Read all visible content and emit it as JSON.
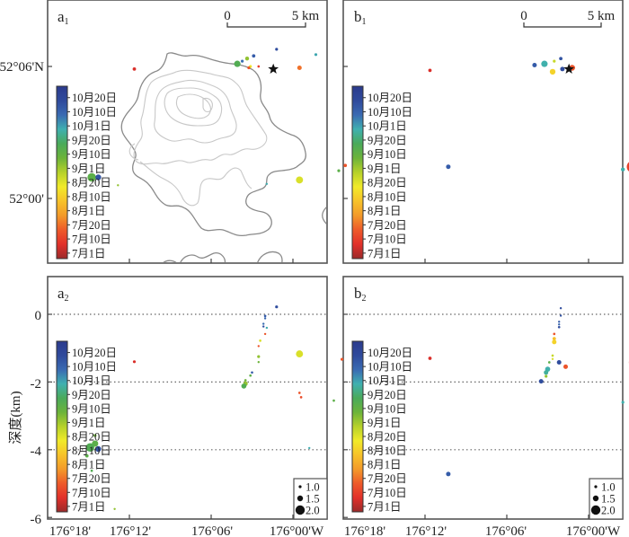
{
  "chart_data": {
    "type": "scatter",
    "title": "",
    "colorbar": {
      "labels": [
        "10月20日",
        "10月10日",
        "10月1日",
        "9月20日",
        "9月10日",
        "9月1日",
        "8月20日",
        "8月10日",
        "8月1日",
        "7月20日",
        "7月10日",
        "7月1日"
      ],
      "colors_top_to_bottom": [
        "#2b3a8c",
        "#2f4a9c",
        "#3a6ab2",
        "#3fb0b0",
        "#4aaa5a",
        "#6cb33a",
        "#b6d12a",
        "#f1ea2a",
        "#f7c22a",
        "#f39a2a",
        "#ee5a2a",
        "#e2302a",
        "#9b2a2a"
      ]
    },
    "size_legend": {
      "labels": [
        "1.0",
        "1.5",
        "2.0"
      ],
      "values": [
        1.0,
        1.5,
        2.0
      ]
    },
    "panels": [
      {
        "id": "a1",
        "label": "a",
        "subscript": "1",
        "kind": "map",
        "ylabel": "",
        "ytick_labels": [
          "52°06'N",
          "52°00'"
        ],
        "scale_bar": {
          "start_label": "0",
          "end_label": "5 km"
        },
        "events": [
          {
            "lon": -176.11,
            "lat": 52.113,
            "date": "10月20日",
            "mag": 1.0
          },
          {
            "lon": -176.124,
            "lat": 52.108,
            "date": "10月15日",
            "mag": 1.1
          },
          {
            "lon": -176.128,
            "lat": 52.106,
            "date": "9月5日",
            "mag": 1.2
          },
          {
            "lon": -176.131,
            "lat": 52.104,
            "date": "10月10日",
            "mag": 1.0
          },
          {
            "lon": -176.134,
            "lat": 52.102,
            "date": "9月18日",
            "mag": 1.6
          },
          {
            "lon": -176.086,
            "lat": 52.109,
            "date": "10月2日",
            "mag": 1.0
          },
          {
            "lon": -176.126,
            "lat": 52.1,
            "date": "8月20日",
            "mag": 1.0
          },
          {
            "lon": -176.127,
            "lat": 52.099,
            "date": "7月20日",
            "mag": 1.0
          },
          {
            "lon": -176.121,
            "lat": 52.1,
            "date": "7月15日",
            "mag": 0.9
          },
          {
            "lon": -176.096,
            "lat": 52.099,
            "date": "7月25日",
            "mag": 1.3
          },
          {
            "lon": -176.197,
            "lat": 52.098,
            "date": "7月10日",
            "mag": 1.1
          },
          {
            "lon": -176.068,
            "lat": 52.025,
            "date": "7月20日",
            "mag": 1.1
          },
          {
            "lon": -176.072,
            "lat": 52.021,
            "date": "9月15日",
            "mag": 1.0
          },
          {
            "lon": -176.005,
            "lat": 52.024,
            "date": "10月15日",
            "mag": 1.3
          },
          {
            "lon": -176.096,
            "lat": 52.014,
            "date": "8月25日",
            "mag": 1.7
          },
          {
            "lon": -176.116,
            "lat": 52.011,
            "date": "10月1日",
            "mag": 0.8
          },
          {
            "lon": -176.223,
            "lat": 52.016,
            "date": "9月15日",
            "mag": 1.9
          },
          {
            "lon": -176.219,
            "lat": 52.016,
            "date": "10月18日",
            "mag": 1.5
          },
          {
            "lon": -176.207,
            "lat": 52.01,
            "date": "9月5日",
            "mag": 0.8
          }
        ]
      },
      {
        "id": "b1",
        "label": "b",
        "subscript": "1",
        "kind": "map",
        "ytick_labels": [],
        "scale_bar": {
          "start_label": "0",
          "end_label": "5 km"
        },
        "events": [
          {
            "lon": -176.117,
            "lat": 52.106,
            "date": "10月18日",
            "mag": 1.1
          },
          {
            "lon": -176.121,
            "lat": 52.104,
            "date": "8月28日",
            "mag": 1.0
          },
          {
            "lon": -176.127,
            "lat": 52.102,
            "date": "9月30日",
            "mag": 1.6
          },
          {
            "lon": -176.133,
            "lat": 52.101,
            "date": "10月15日",
            "mag": 1.3
          },
          {
            "lon": -176.116,
            "lat": 52.098,
            "date": "10月20日",
            "mag": 1.3
          },
          {
            "lon": -176.11,
            "lat": 52.099,
            "date": "7月20日",
            "mag": 1.5
          },
          {
            "lon": -176.122,
            "lat": 52.096,
            "date": "8月15日",
            "mag": 1.5
          },
          {
            "lon": -176.197,
            "lat": 52.097,
            "date": "7月10日",
            "mag": 1.1
          },
          {
            "lon": -176.073,
            "lat": 52.024,
            "date": "7月15日",
            "mag": 2.3
          },
          {
            "lon": -176.073,
            "lat": 52.024,
            "date": "8月5日",
            "mag": 1.4
          },
          {
            "lon": -176.079,
            "lat": 52.022,
            "date": "9月30日",
            "mag": 1.2
          }
        ]
      },
      {
        "id": "a2",
        "label": "a",
        "subscript": "2",
        "kind": "profile",
        "ylabel": "深度(km)",
        "ylim": [
          -6,
          1
        ],
        "ytick_labels": [
          "0",
          "-2",
          "-4",
          "-6"
        ],
        "yticks": [
          0,
          -2,
          -4,
          -6
        ],
        "xtick_labels": [
          "176°18'",
          "176°12'",
          "176°06'",
          "176°00'W"
        ],
        "events": [
          {
            "lon": -176.11,
            "depth": 0.22,
            "date": "10月20日",
            "mag": 1.0
          },
          {
            "lon": -176.117,
            "depth": -0.05,
            "date": "10月15日",
            "mag": 0.9
          },
          {
            "lon": -176.117,
            "depth": -0.12,
            "date": "10月12日",
            "mag": 0.8
          },
          {
            "lon": -176.118,
            "depth": -0.28,
            "date": "10月10日",
            "mag": 0.8
          },
          {
            "lon": -176.118,
            "depth": -0.36,
            "date": "10月18日",
            "mag": 0.8
          },
          {
            "lon": -176.116,
            "depth": -0.4,
            "date": "10月1日",
            "mag": 0.8
          },
          {
            "lon": -176.117,
            "depth": -0.58,
            "date": "7月20日",
            "mag": 0.8
          },
          {
            "lon": -176.12,
            "depth": -0.78,
            "date": "8月25日",
            "mag": 0.9
          },
          {
            "lon": -176.121,
            "depth": -0.94,
            "date": "7月20日",
            "mag": 0.8
          },
          {
            "lon": -176.121,
            "depth": -1.25,
            "date": "9月5日",
            "mag": 1.0
          },
          {
            "lon": -176.121,
            "depth": -1.41,
            "date": "9月10日",
            "mag": 0.8
          },
          {
            "lon": -176.125,
            "depth": -1.72,
            "date": "10月15日",
            "mag": 0.9
          },
          {
            "lon": -176.126,
            "depth": -1.81,
            "date": "9月15日",
            "mag": 0.9
          },
          {
            "lon": -176.129,
            "depth": -1.95,
            "date": "9月10日",
            "mag": 0.9
          },
          {
            "lon": -176.129,
            "depth": -2.05,
            "date": "9月5日",
            "mag": 1.3
          },
          {
            "lon": -176.13,
            "depth": -2.12,
            "date": "9月18日",
            "mag": 1.4
          },
          {
            "lon": -176.096,
            "depth": -1.17,
            "date": "8月25日",
            "mag": 1.7
          },
          {
            "lon": -176.07,
            "depth": -1.33,
            "date": "7月20日",
            "mag": 1.0
          },
          {
            "lon": -176.197,
            "depth": -1.4,
            "date": "7月10日",
            "mag": 1.0
          },
          {
            "lon": -176.096,
            "depth": -2.32,
            "date": "7月20日",
            "mag": 0.9
          },
          {
            "lon": -176.095,
            "depth": -2.45,
            "date": "7月18日",
            "mag": 0.9
          },
          {
            "lon": -176.075,
            "depth": -2.55,
            "date": "9月15日",
            "mag": 0.9
          },
          {
            "lon": -176.09,
            "depth": -3.95,
            "date": "10月1日",
            "mag": 0.8
          },
          {
            "lon": -176.221,
            "depth": -3.58,
            "date": "9月10日",
            "mag": 1.0
          },
          {
            "lon": -176.221,
            "depth": -3.82,
            "date": "9月15日",
            "mag": 1.6
          },
          {
            "lon": -176.224,
            "depth": -3.93,
            "date": "9月18日",
            "mag": 1.9
          },
          {
            "lon": -176.219,
            "depth": -3.98,
            "date": "10月18日",
            "mag": 1.5
          },
          {
            "lon": -176.226,
            "depth": -4.18,
            "date": "9月15日",
            "mag": 1.1
          },
          {
            "lon": -176.223,
            "depth": -4.62,
            "date": "9月18日",
            "mag": 0.9
          },
          {
            "lon": -176.209,
            "depth": -5.75,
            "date": "9月5日",
            "mag": 0.8
          },
          {
            "lon": -176.005,
            "depth": -4.72,
            "date": "10月15日",
            "mag": 1.3
          }
        ]
      },
      {
        "id": "b2",
        "label": "b",
        "subscript": "2",
        "kind": "profile",
        "ylim": [
          -6,
          1
        ],
        "xtick_labels": [
          "176°18'",
          "176°12'",
          "176°06'",
          "176°00'W"
        ],
        "events": [
          {
            "lon": -176.117,
            "depth": 0.18,
            "date": "10月20日",
            "mag": 0.7
          },
          {
            "lon": -176.117,
            "depth": -0.04,
            "date": "10月18日",
            "mag": 0.8
          },
          {
            "lon": -176.118,
            "depth": -0.22,
            "date": "10月15日",
            "mag": 0.8
          },
          {
            "lon": -176.118,
            "depth": -0.3,
            "date": "10月12日",
            "mag": 0.8
          },
          {
            "lon": -176.118,
            "depth": -0.38,
            "date": "10月20日",
            "mag": 0.9
          },
          {
            "lon": -176.121,
            "depth": -0.58,
            "date": "7月20日",
            "mag": 0.9
          },
          {
            "lon": -176.121,
            "depth": -0.72,
            "date": "8月10日",
            "mag": 1.1
          },
          {
            "lon": -176.121,
            "depth": -0.82,
            "date": "8月15日",
            "mag": 1.3
          },
          {
            "lon": -176.122,
            "depth": -1.22,
            "date": "8月28日",
            "mag": 0.9
          },
          {
            "lon": -176.122,
            "depth": -1.32,
            "date": "8月25日",
            "mag": 0.8
          },
          {
            "lon": -176.124,
            "depth": -1.42,
            "date": "9月15日",
            "mag": 0.9
          },
          {
            "lon": -176.118,
            "depth": -1.42,
            "date": "10月20日",
            "mag": 1.3
          },
          {
            "lon": -176.114,
            "depth": -1.55,
            "date": "7月20日",
            "mag": 1.3
          },
          {
            "lon": -176.125,
            "depth": -1.62,
            "date": "9月30日",
            "mag": 1.4
          },
          {
            "lon": -176.126,
            "depth": -1.72,
            "date": "9月28日",
            "mag": 1.3
          },
          {
            "lon": -176.126,
            "depth": -1.83,
            "date": "9月5日",
            "mag": 1.0
          },
          {
            "lon": -176.129,
            "depth": -1.98,
            "date": "10月20日",
            "mag": 1.3
          },
          {
            "lon": -176.073,
            "depth": -1.13,
            "date": "8月5日",
            "mag": 1.2
          },
          {
            "lon": -176.073,
            "depth": -1.28,
            "date": "7月20日",
            "mag": 0.8
          },
          {
            "lon": -176.072,
            "depth": -1.42,
            "date": "7月15日",
            "mag": 2.2
          },
          {
            "lon": -176.079,
            "depth": -2.6,
            "date": "9月30日",
            "mag": 1.0
          },
          {
            "lon": -176.197,
            "depth": -1.3,
            "date": "7月10日",
            "mag": 1.1
          }
        ]
      }
    ],
    "marker": {
      "name": "summit-star",
      "lon": -176.112,
      "lat": 52.098
    }
  }
}
